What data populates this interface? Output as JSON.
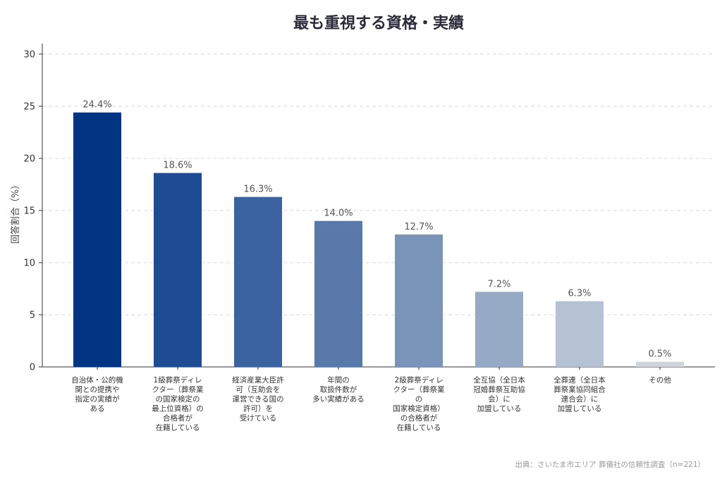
{
  "chart_data": {
    "type": "bar",
    "title": "最も重視する資格・実績",
    "ylabel": "回答割合（%）",
    "xlabel": "",
    "ylim": [
      0,
      31
    ],
    "yticks": [
      0,
      5,
      10,
      15,
      20,
      25,
      30
    ],
    "grid": true,
    "categories": [
      "自治体・公的機関との提携や指定の実績がある",
      "1級葬祭ディレクター（葬祭業の国家検定の最上位資格）の合格者が在籍している",
      "経済産業大臣許可（互助会を運営できる国の許可）を受けている",
      "年間の取扱件数が多い実績がある",
      "2級葬祭ディレクター（葬祭業の国家検定資格）の合格者が在籍している",
      "全互協（全日本冠婚葬祭互助協会）に加盟している",
      "全葬連（全日本葬祭業協同組合連合会）に加盟している",
      "その他"
    ],
    "category_label_lines": [
      [
        "自治体・公的機",
        "関との提携や",
        "指定の実績が",
        "ある"
      ],
      [
        "1級葬祭ディレ",
        "クター（葬祭業",
        "の国家検定の",
        "最上位資格）の",
        "合格者が",
        "在籍している"
      ],
      [
        "経済産業大臣許",
        "可（互助会を",
        "運営できる国の",
        "許可）を",
        "受けている"
      ],
      [
        "年間の",
        "取扱件数が",
        "多い実績がある"
      ],
      [
        "2級葬祭ディレ",
        "クター（葬祭業",
        "の",
        "国家検定資格）",
        "の合格者が",
        "在籍している"
      ],
      [
        "全互協（全日本",
        "冠婚葬祭互助協",
        "会）に",
        "加盟している"
      ],
      [
        "全葬連（全日本",
        "葬祭業協同組合",
        "連合会）に",
        "加盟している"
      ],
      [
        "その他"
      ]
    ],
    "values": [
      24.4,
      18.6,
      16.3,
      14.0,
      12.7,
      7.2,
      6.3,
      0.5
    ],
    "value_labels": [
      "24.4%",
      "18.6%",
      "16.3%",
      "14.0%",
      "12.7%",
      "7.2%",
      "6.3%",
      "0.5%"
    ],
    "colors": [
      "#013584",
      "#1e4c94",
      "#3a63a0",
      "#5879aa",
      "#7a93b9",
      "#97aac5",
      "#b4c2d3",
      "#d0d5d9"
    ],
    "source": "出典：さいたま市エリア 葬儀社の信頼性調査（n=221）"
  }
}
